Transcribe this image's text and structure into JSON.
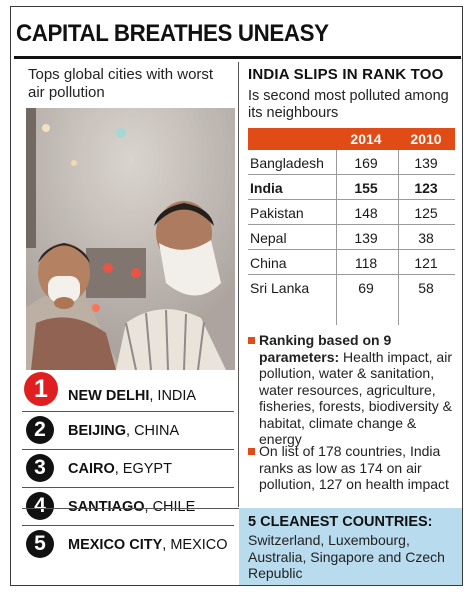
{
  "headline": "CAPITAL BREATHES UNEASY",
  "left": {
    "subtitle": "Tops global cities with worst air pollution",
    "ranks": [
      {
        "number": "1",
        "city": "NEW DELHI",
        "country": ", INDIA"
      },
      {
        "number": "2",
        "city": "BEIJING",
        "country": ", CHINA"
      },
      {
        "number": "3",
        "city": "CAIRO",
        "country": ", EGYPT"
      },
      {
        "number": "4",
        "city": "SANTIAGO",
        "country": ", CHILE"
      },
      {
        "number": "5",
        "city": "MEXICO CITY",
        "country": ", MEXICO"
      }
    ]
  },
  "right": {
    "title": "INDIA SLIPS IN RANK TOO",
    "subtitle": "Is second most polluted among its neighbours",
    "bullets": [
      {
        "heading": "Ranking based on 9 parameters:",
        "body": "Health impact, air pollution, water & sanitation, water resources, agriculture, fisheries, forests, biodiversity & habitat, climate change & energy"
      },
      {
        "heading": "",
        "body": "On list of 178 countries, India ranks as low as 174 on air pollution, 127 on health impact"
      }
    ],
    "cleanest": {
      "title": "5 CLEANEST COUNTRIES:",
      "body": "Switzerland, Luxembourg, Australia, Singapore and Czech Republic"
    }
  },
  "colors": {
    "accent": "#e14b16",
    "rank_one": "#e02020",
    "clean_box": "#b9dbee"
  },
  "chart_data": {
    "type": "table",
    "columns": [
      "",
      "2014",
      "2010"
    ],
    "rows": [
      {
        "country": "Bangladesh",
        "2014": 169,
        "2010": 139
      },
      {
        "country": "India",
        "2014": 155,
        "2010": 123
      },
      {
        "country": "Pakistan",
        "2014": 148,
        "2010": 125
      },
      {
        "country": "Nepal",
        "2014": 139,
        "2010": 38
      },
      {
        "country": "China",
        "2014": 118,
        "2010": 121
      },
      {
        "country": "Sri Lanka",
        "2014": 69,
        "2010": 58
      }
    ],
    "highlight_row": "India"
  }
}
